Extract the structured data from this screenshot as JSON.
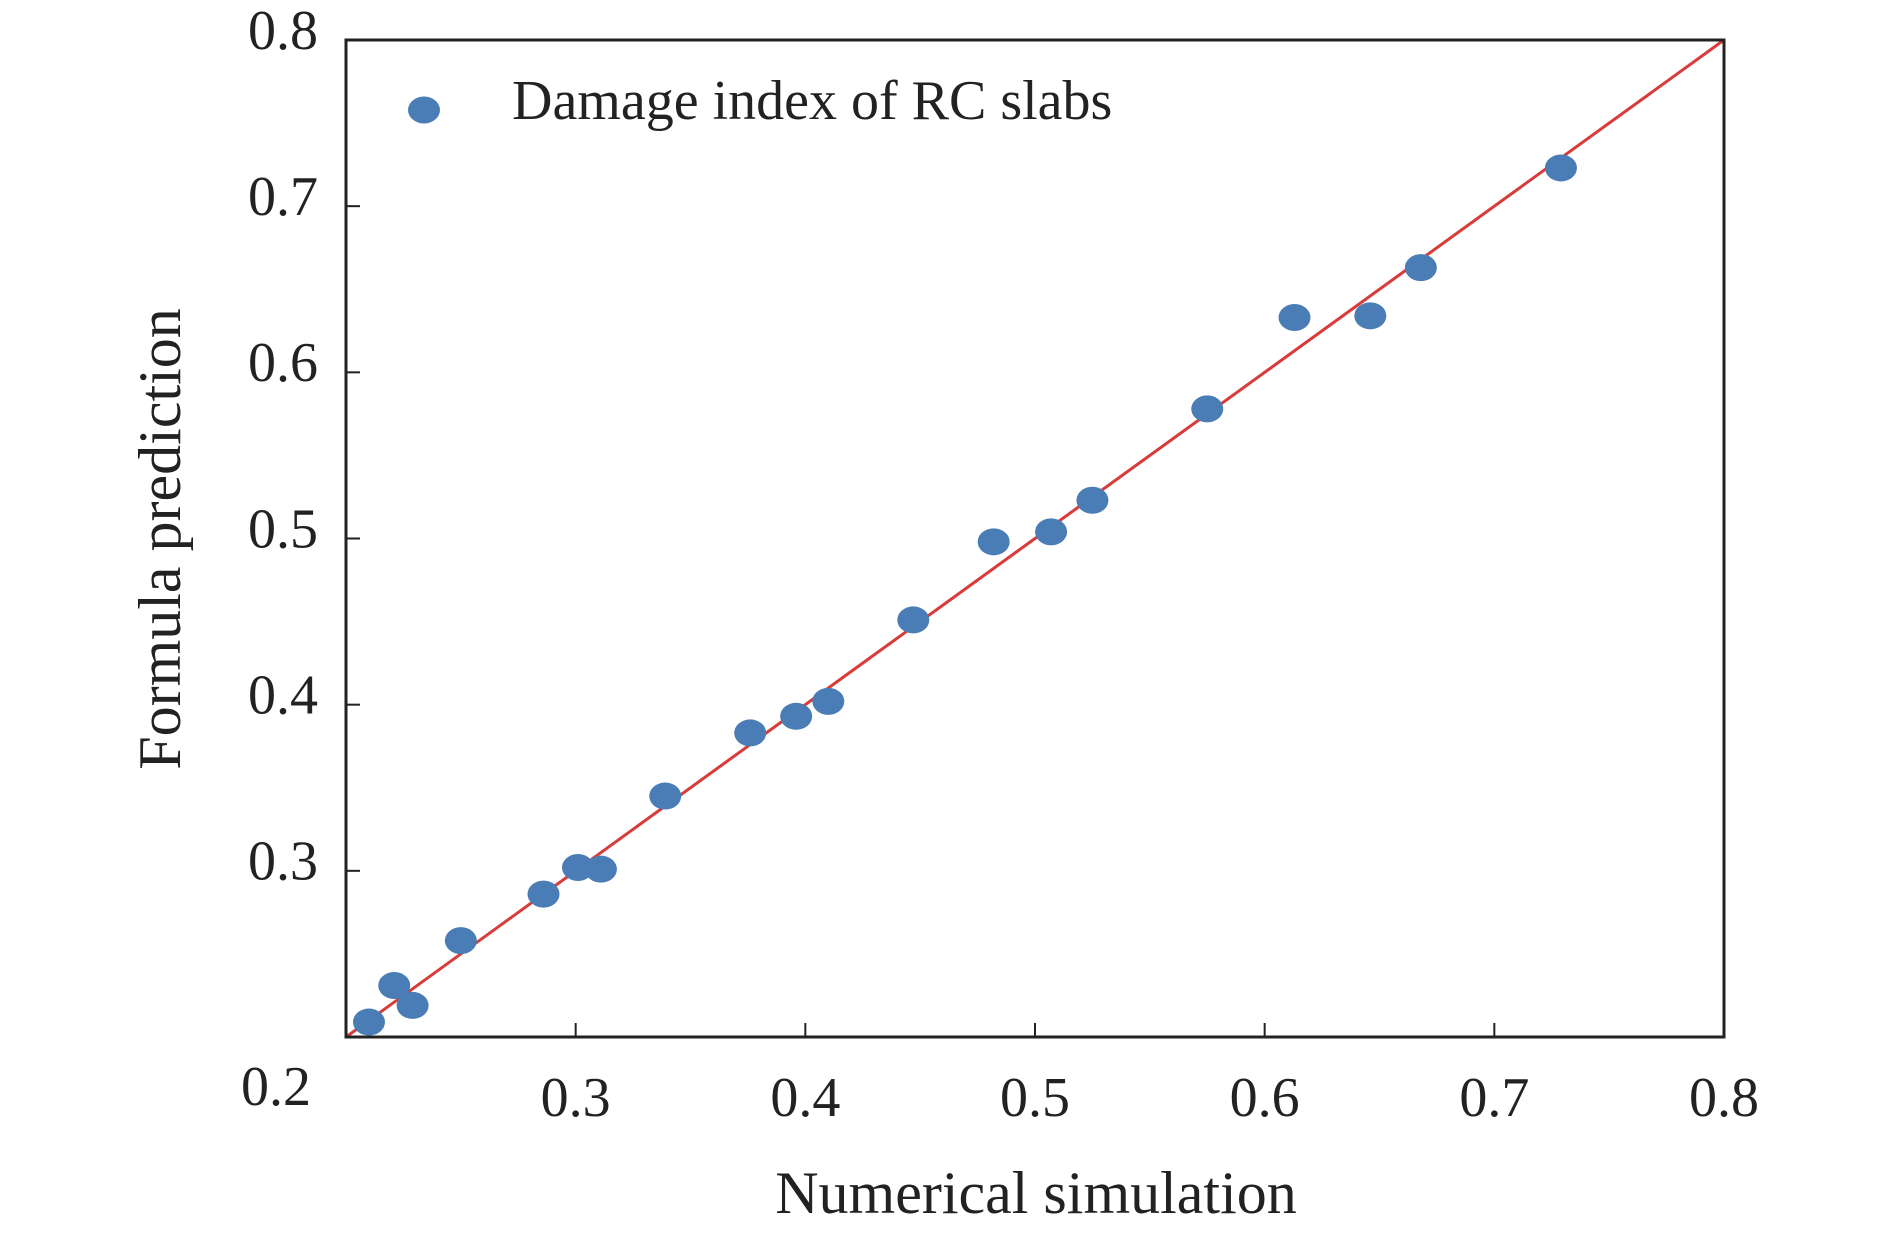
{
  "chart_data": {
    "type": "scatter",
    "xlabel": "Numerical simulation",
    "ylabel": "Formula prediction",
    "series": [
      {
        "name": "Damage index of RC slabs",
        "color": "#4a7db5",
        "x": [
          0.21,
          0.221,
          0.229,
          0.25,
          0.286,
          0.301,
          0.311,
          0.339,
          0.376,
          0.396,
          0.41,
          0.447,
          0.482,
          0.507,
          0.525,
          0.575,
          0.613,
          0.646,
          0.668,
          0.729
        ],
        "values": [
          0.209,
          0.231,
          0.219,
          0.258,
          0.286,
          0.302,
          0.301,
          0.345,
          0.383,
          0.393,
          0.402,
          0.451,
          0.498,
          0.504,
          0.523,
          0.578,
          0.633,
          0.634,
          0.663,
          0.723
        ]
      }
    ],
    "reference_line": {
      "color": "#d93a3a",
      "x": [
        0.2,
        0.8
      ],
      "values": [
        0.2,
        0.8
      ]
    },
    "xlim": [
      0.2,
      0.8
    ],
    "ylim": [
      0.2,
      0.8
    ],
    "xticks": [
      0.2,
      0.3,
      0.4,
      0.5,
      0.6,
      0.7,
      0.8
    ],
    "yticks": [
      0.3,
      0.4,
      0.5,
      0.6,
      0.7,
      0.8
    ],
    "legend": "upper left"
  }
}
